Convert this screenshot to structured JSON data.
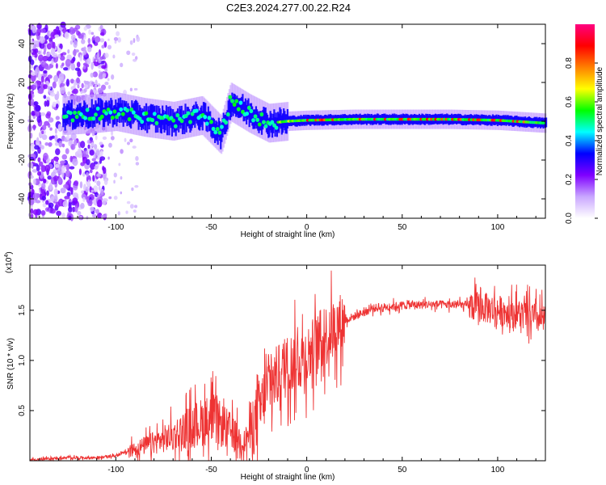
{
  "title": "C2E3.2024.277.00.22.R24",
  "chart_data": [
    {
      "type": "heatmap",
      "name": "spectrogram",
      "xlabel": "Height of straight line (km)",
      "ylabel": "Frequency (Hz)",
      "xlim": [
        -145,
        125
      ],
      "ylim": [
        -50,
        50
      ],
      "xticks": [
        -100,
        -50,
        0,
        50,
        100
      ],
      "yticks": [
        -40,
        -20,
        0,
        20,
        40
      ],
      "colorbar": {
        "label": "Normalized spectral amplitude",
        "range": [
          0,
          1
        ],
        "ticks": [
          0.0,
          0.2,
          0.4,
          0.6,
          0.8
        ],
        "colors": [
          "#ffffff",
          "#c9a7ff",
          "#7f00ff",
          "#0000ff",
          "#00ffff",
          "#00ff00",
          "#ffff00",
          "#ff8000",
          "#ff0000",
          "#ff0080"
        ]
      },
      "ridge": {
        "description_points": [
          {
            "x": -125,
            "f": 3
          },
          {
            "x": -110,
            "f": 4
          },
          {
            "x": -100,
            "f": 5
          },
          {
            "x": -85,
            "f": 2
          },
          {
            "x": -70,
            "f": 0
          },
          {
            "x": -55,
            "f": 3
          },
          {
            "x": -45,
            "f": -7
          },
          {
            "x": -40,
            "f": 10
          },
          {
            "x": -30,
            "f": 4
          },
          {
            "x": -20,
            "f": -1
          },
          {
            "x": -10,
            "f": 0
          },
          {
            "x": 0,
            "f": 0.5
          },
          {
            "x": 25,
            "f": 1
          },
          {
            "x": 50,
            "f": 1
          },
          {
            "x": 75,
            "f": 1
          },
          {
            "x": 100,
            "f": 0.5
          },
          {
            "x": 125,
            "f": -1
          }
        ]
      }
    },
    {
      "type": "line",
      "name": "snr",
      "xlabel": "Height of straight line (km)",
      "ylabel": "SNR (10 * v/v)",
      "multiplier_label": "(x10",
      "multiplier_exp": "4",
      "multiplier_close": ")",
      "xlim": [
        -145,
        125
      ],
      "ylim": [
        0,
        1.95
      ],
      "xticks": [
        -100,
        -50,
        0,
        50,
        100
      ],
      "yticks": [
        0.5,
        1.0,
        1.5
      ],
      "color": "#ee3333",
      "envelope": [
        {
          "x": -145,
          "y": 0.01
        },
        {
          "x": -125,
          "y": 0.03
        },
        {
          "x": -110,
          "y": 0.03
        },
        {
          "x": -100,
          "y": 0.05
        },
        {
          "x": -90,
          "y": 0.12
        },
        {
          "x": -80,
          "y": 0.18
        },
        {
          "x": -70,
          "y": 0.25
        },
        {
          "x": -60,
          "y": 0.35
        },
        {
          "x": -50,
          "y": 0.42
        },
        {
          "x": -40,
          "y": 0.3
        },
        {
          "x": -33,
          "y": 0.18
        },
        {
          "x": -28,
          "y": 0.35
        },
        {
          "x": -20,
          "y": 0.75
        },
        {
          "x": -10,
          "y": 0.95
        },
        {
          "x": 0,
          "y": 1.05
        },
        {
          "x": 10,
          "y": 1.25
        },
        {
          "x": 20,
          "y": 1.4
        },
        {
          "x": 35,
          "y": 1.52
        },
        {
          "x": 50,
          "y": 1.55
        },
        {
          "x": 65,
          "y": 1.56
        },
        {
          "x": 85,
          "y": 1.55
        },
        {
          "x": 100,
          "y": 1.5
        },
        {
          "x": 115,
          "y": 1.45
        },
        {
          "x": 125,
          "y": 1.4
        }
      ]
    }
  ]
}
